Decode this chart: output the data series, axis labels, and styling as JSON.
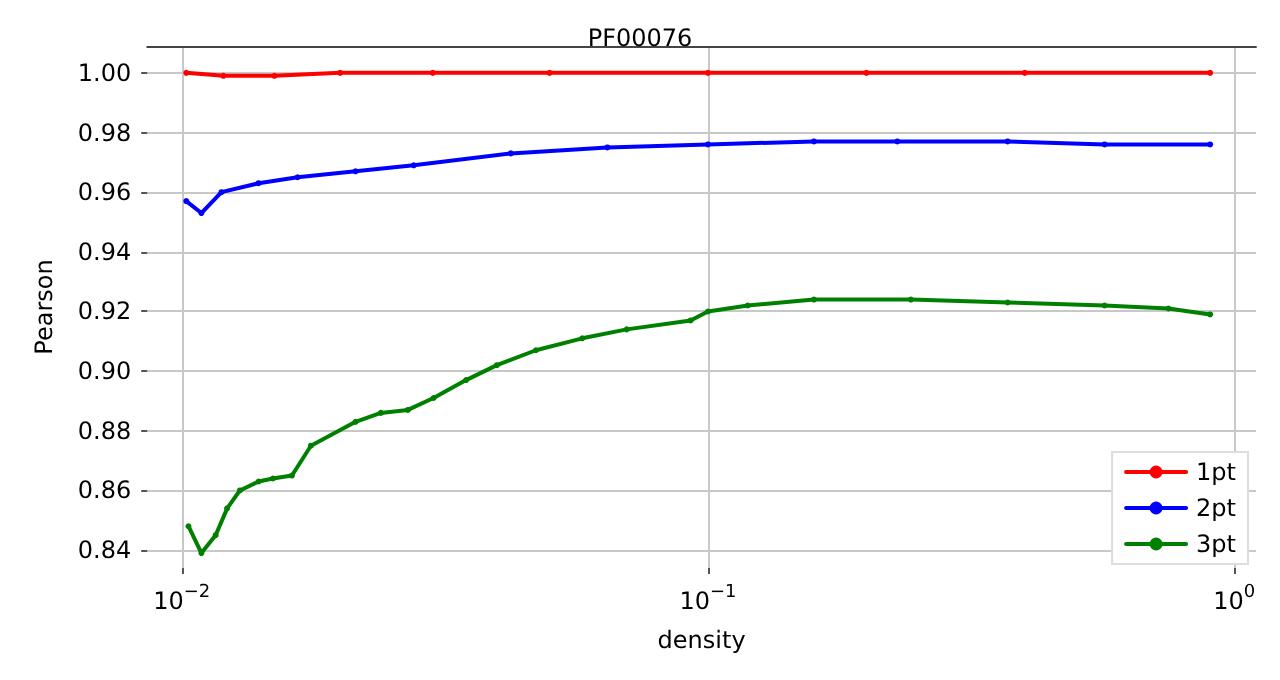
{
  "chart_data": {
    "type": "line",
    "title": "PF00076",
    "xlabel": "density",
    "ylabel": "Pearson",
    "log": "x",
    "xlim": [
      0.0086,
      1.1
    ],
    "xticks": [
      {
        "value": 0.01,
        "label": "10$^{−2}$"
      },
      {
        "value": 0.1,
        "label": "10$^{−1}$"
      },
      {
        "value": 1,
        "label": "10$^{0}$"
      }
    ],
    "ylim": [
      0.834,
      1.009
    ],
    "yticks": [
      {
        "value": 0.84,
        "label": "0.84"
      },
      {
        "value": 0.86,
        "label": "0.86"
      },
      {
        "value": 0.88,
        "label": "0.88"
      },
      {
        "value": 0.9,
        "label": "0.90"
      },
      {
        "value": 0.92,
        "label": "0.92"
      },
      {
        "value": 0.94,
        "label": "0.94"
      },
      {
        "value": 0.96,
        "label": "0.96"
      },
      {
        "value": 0.98,
        "label": "0.98"
      },
      {
        "value": 1,
        "label": "1.00"
      }
    ],
    "grid": true,
    "legend": "bottom right",
    "marker": "circle",
    "line_style": "solid",
    "series": [
      {
        "name": "1pt",
        "color": "#ff0000",
        "x": [
          0.0102,
          0.012,
          0.015,
          0.02,
          0.03,
          0.05,
          0.1,
          0.2,
          0.4,
          0.9
        ],
        "values": [
          1.0,
          0.999,
          0.999,
          1.0,
          1.0,
          1.0,
          1.0,
          1.0,
          1.0,
          1.0
        ]
      },
      {
        "name": "2pt",
        "color": "#0000ff",
        "x": [
          0.0102,
          0.0109,
          0.0119,
          0.014,
          0.0166,
          0.0214,
          0.0276,
          0.0422,
          0.0644,
          0.1,
          0.159,
          0.229,
          0.371,
          0.567,
          0.9
        ],
        "values": [
          0.957,
          0.953,
          0.96,
          0.963,
          0.965,
          0.967,
          0.969,
          0.973,
          0.975,
          0.976,
          0.977,
          0.977,
          0.977,
          0.976,
          0.976
        ]
      },
      {
        "name": "3pt",
        "color": "#008000",
        "x": [
          0.0103,
          0.0109,
          0.0116,
          0.0122,
          0.0129,
          0.014,
          0.0149,
          0.0162,
          0.0176,
          0.0214,
          0.0239,
          0.0269,
          0.0301,
          0.0347,
          0.0397,
          0.0471,
          0.0577,
          0.0701,
          0.0927,
          0.1,
          0.119,
          0.159,
          0.243,
          0.371,
          0.567,
          0.75,
          0.9
        ],
        "values": [
          0.848,
          0.839,
          0.845,
          0.854,
          0.86,
          0.863,
          0.864,
          0.865,
          0.875,
          0.883,
          0.886,
          0.887,
          0.891,
          0.897,
          0.902,
          0.907,
          0.911,
          0.914,
          0.917,
          0.92,
          0.922,
          0.924,
          0.924,
          0.923,
          0.922,
          0.921,
          0.919
        ]
      }
    ]
  }
}
